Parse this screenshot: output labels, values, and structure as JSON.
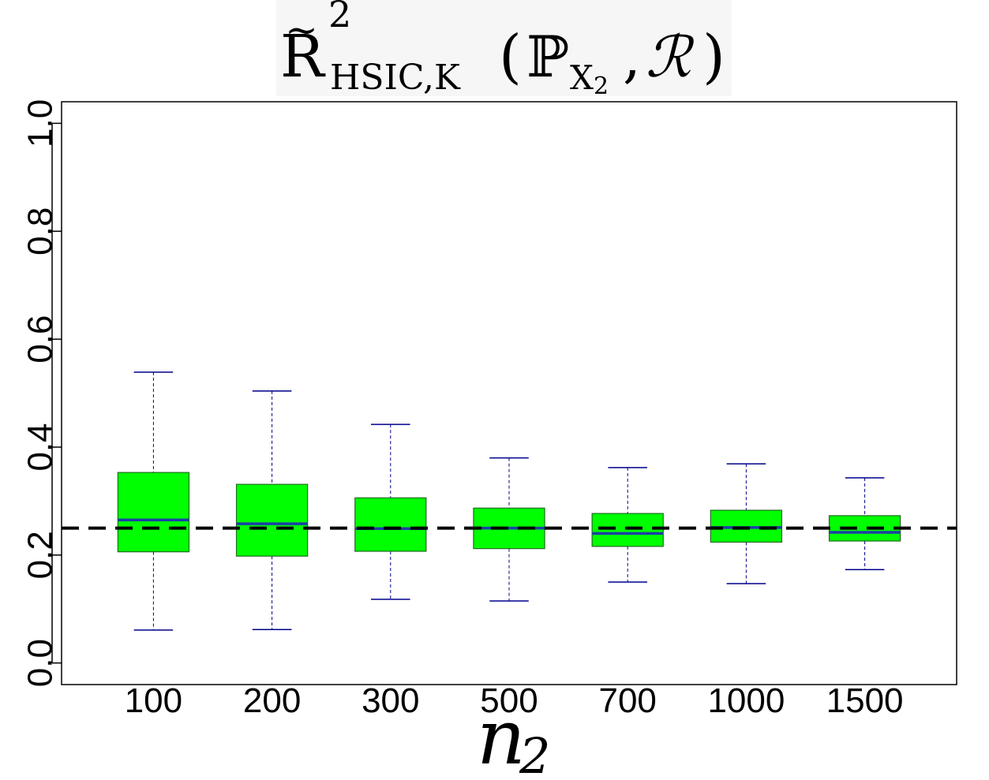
{
  "chart_data": {
    "type": "box",
    "title": {
      "base": "R",
      "accent": "~",
      "superscript": "2",
      "subscript": "HSIC,K",
      "argument_open": "(",
      "argument_symbol": "ℙ",
      "argument_subscript": "X",
      "argument_subscript_index": "2",
      "argument_separator": ",",
      "argument_set": "ℛ",
      "argument_close": ")"
    },
    "xlabel": {
      "main": "n",
      "subscript": "2"
    },
    "ylabel": "",
    "categories": [
      "100",
      "200",
      "300",
      "500",
      "700",
      "1000",
      "1500"
    ],
    "ylim": [
      -0.04,
      1.04
    ],
    "yticks": [
      0.0,
      0.2,
      0.4,
      0.6,
      0.8,
      1.0
    ],
    "ytick_labels": [
      "0.0",
      "0.2",
      "0.4",
      "0.6",
      "0.8",
      "1.0"
    ],
    "boxes": [
      {
        "whisker_low": 0.061,
        "q1": 0.206,
        "median": 0.265,
        "q3": 0.353,
        "whisker_high": 0.539
      },
      {
        "whisker_low": 0.062,
        "q1": 0.198,
        "median": 0.258,
        "q3": 0.331,
        "whisker_high": 0.504
      },
      {
        "whisker_low": 0.118,
        "q1": 0.207,
        "median": 0.249,
        "q3": 0.306,
        "whisker_high": 0.442
      },
      {
        "whisker_low": 0.115,
        "q1": 0.212,
        "median": 0.25,
        "q3": 0.287,
        "whisker_high": 0.38
      },
      {
        "whisker_low": 0.15,
        "q1": 0.216,
        "median": 0.24,
        "q3": 0.277,
        "whisker_high": 0.362
      },
      {
        "whisker_low": 0.147,
        "q1": 0.224,
        "median": 0.251,
        "q3": 0.283,
        "whisker_high": 0.369
      },
      {
        "whisker_low": 0.173,
        "q1": 0.226,
        "median": 0.242,
        "q3": 0.273,
        "whisker_high": 0.343
      }
    ],
    "reference_line": {
      "y": 0.25,
      "style": "dashed"
    },
    "colors": {
      "box_fill": "#00ff00",
      "box_border": "#1f6b1f",
      "median": "#1c3fa8",
      "whisker": "#00008b",
      "reference": "#000000"
    },
    "grid": false,
    "legend": "none"
  }
}
